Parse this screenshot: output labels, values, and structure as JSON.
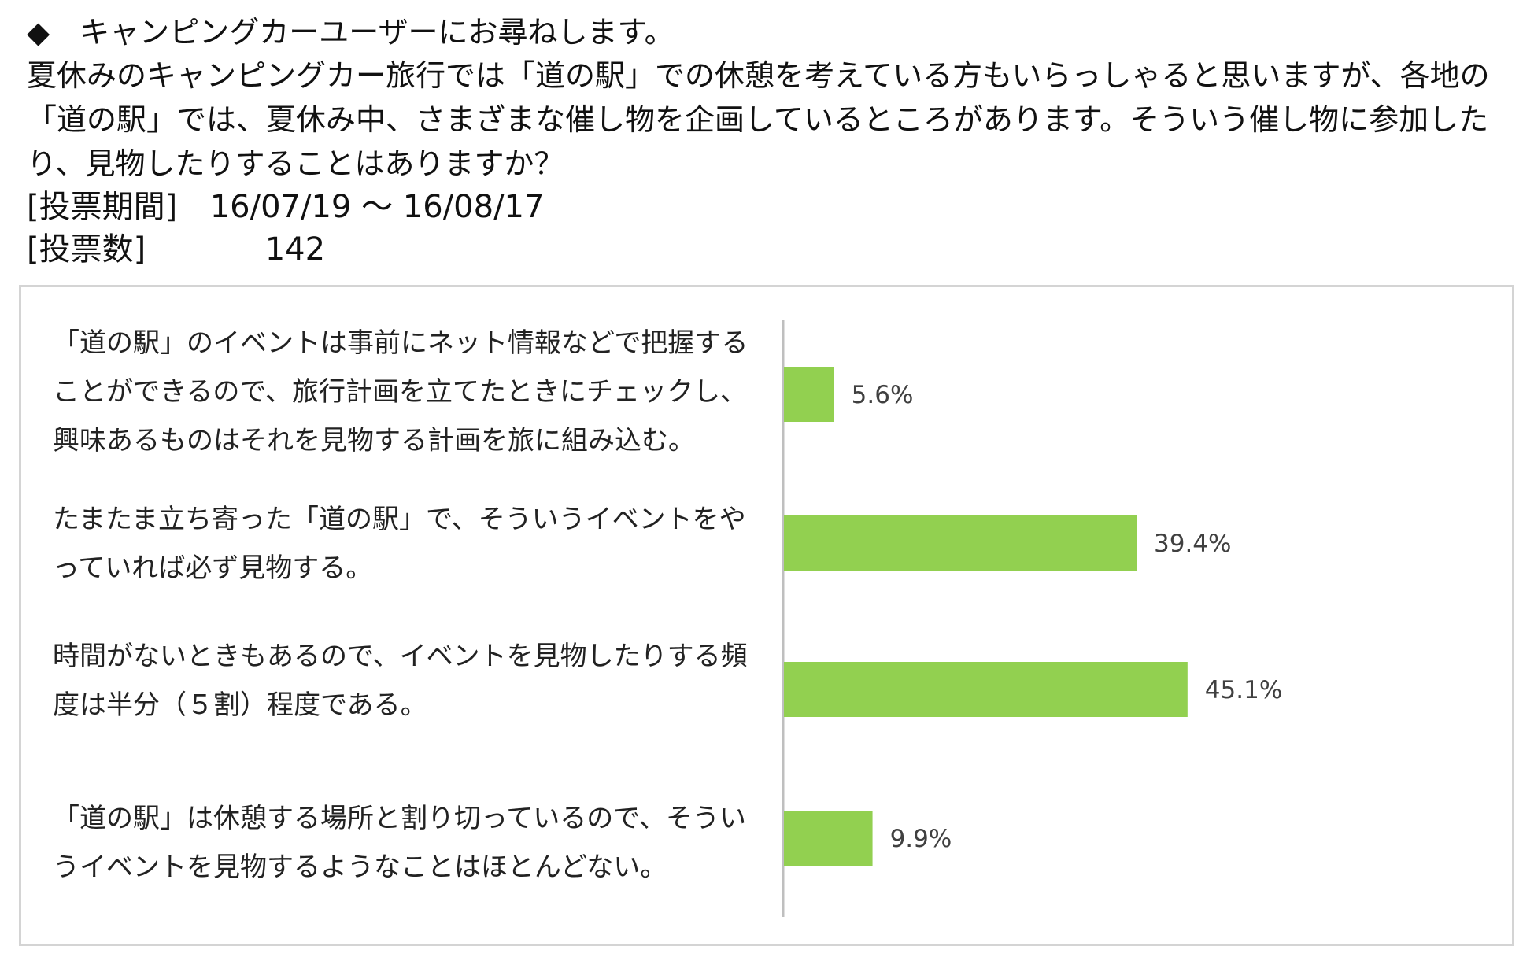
{
  "header": {
    "title": "◆　キャンピングカーユーザーにお尋ねします。",
    "question": "夏休みのキャンピングカー旅行では「道の駅」での休憩を考えている方もいらっしゃると思いますが、各地の「道の駅」では、夏休み中、さまざまな催し物を企画しているところがあります。そういう催し物に参加したり、見物したりすることはありますか？",
    "period_label": "[投票期間]",
    "period_value": "16/07/19 ～ 16/08/17",
    "votes_label": "[投票数]",
    "votes_value": "142"
  },
  "chart_data": {
    "type": "bar",
    "orientation": "horizontal",
    "categories": [
      "「道の駅」のイベントは事前にネット情報などで把握することができるので、旅行計画を立てたときにチェックし、興味あるものはそれを見物する計画を旅に組み込む。",
      "たまたま立ち寄った「道の駅」で、そういうイベントをやっていれば必ず見物する。",
      "時間がないときもあるので、イベントを見物したりする頻度は半分（５割）程度である。",
      "「道の駅」は休憩する場所と割り切っているので、そういうイベントを見物するようなことはほとんどない。"
    ],
    "values": [
      5.6,
      39.4,
      45.1,
      9.9
    ],
    "value_labels": [
      "5.6%",
      "39.4%",
      "45.1%",
      "9.9%"
    ],
    "unit": "%",
    "xlim": [
      0,
      50
    ],
    "grid": false,
    "legend": "none",
    "bar_color": "#92d050",
    "axis_color": "#bfbfbf",
    "label_color": "#404040"
  }
}
